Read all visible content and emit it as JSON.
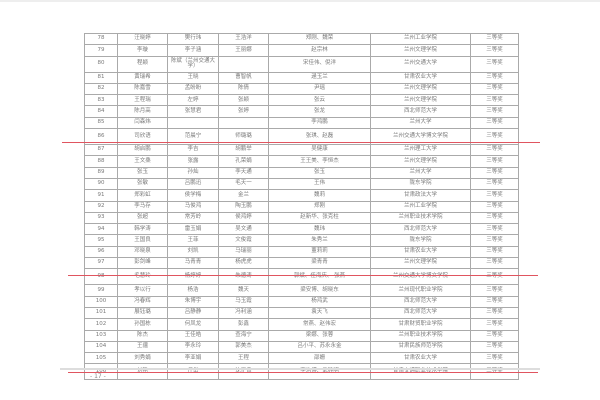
{
  "rows": [
    [
      "78",
      "汪晓婷",
      "樊行玮",
      "王浩洋",
      "郑刚、魏荣",
      "兰州工业学院",
      "三等奖"
    ],
    [
      "79",
      "李璇",
      "李子涵",
      "王丽娜",
      "赵宗林",
      "兰州文理学院",
      "三等奖"
    ],
    [
      "80",
      "程颖",
      "陈斌（兰州交通大学）",
      "",
      "宋佳伟、倪洋",
      "兰州交通大学",
      "三等奖"
    ],
    [
      "81",
      "黄瑞希",
      "王晓",
      "曹智帆",
      "逯玉兰",
      "甘肃农业大学",
      "三等奖"
    ],
    [
      "82",
      "陈嘉雪",
      "孟盼盼",
      "陈倩",
      "尹瑶",
      "兰州文理学院",
      "三等奖"
    ],
    [
      "83",
      "王程瑞",
      "左婷",
      "张颖",
      "张云",
      "兰州文理学院",
      "三等奖"
    ],
    [
      "84",
      "陈月高",
      "张慧君",
      "张婷",
      "张龙",
      "西北师范大学",
      "三等奖"
    ],
    [
      "85",
      "闫森炜",
      "",
      "",
      "李鸿鹏",
      "兰州大学",
      "三等奖"
    ],
    [
      "86",
      "司欣语",
      "范晨宁",
      "师璐璐",
      "张琪、赵磊",
      "兰州交通大学博文学院",
      "三等奖"
    ],
    [
      "87",
      "胡启鹏",
      "李吉",
      "胡鹏举",
      "吴健康",
      "兰州理工大学",
      "三等奖"
    ],
    [
      "88",
      "王文桑",
      "张露",
      "孔荣娟",
      "王王美、李恒杰",
      "兰州文理学院",
      "三等奖"
    ],
    [
      "89",
      "张玉",
      "孙灿",
      "李天通",
      "张玉",
      "兰州大学",
      "三等奖"
    ],
    [
      "90",
      "张敏",
      "吕鹏迅",
      "毛天一",
      "王伟",
      "陇东学院",
      "三等奖"
    ],
    [
      "91",
      "郑彩虹",
      "侯学梅",
      "金兰",
      "魏莉",
      "甘肃政法大学",
      "三等奖"
    ],
    [
      "92",
      "李马存",
      "马俊鸿",
      "陶玉鹏",
      "郑刚",
      "兰州工业学院",
      "三等奖"
    ],
    [
      "93",
      "张超",
      "常芳岭",
      "侯鸿婷",
      "赵新华、张克柱",
      "兰州职业技术学院",
      "三等奖"
    ],
    [
      "94",
      "韩学涛",
      "雷玉娟",
      "吴文通",
      "魏玮",
      "西北师范大学",
      "三等奖"
    ],
    [
      "95",
      "王国良",
      "王菲",
      "文俊霞",
      "朱秀兰",
      "陇东学院",
      "三等奖"
    ],
    [
      "96",
      "邓晓泉",
      "刘凯",
      "马瑞丽",
      "董莉莉",
      "甘肃农业大学",
      "三等奖"
    ],
    [
      "97",
      "彭剑峰",
      "马青青",
      "杨虎虎",
      "梁青青",
      "兰州文理学院",
      "三等奖"
    ],
    [
      "98",
      "毛慧玲",
      "杨婷婷",
      "朱德涛",
      "郭斌、任海庆、 张燕",
      "兰州交通大学博文学院",
      "三等奖"
    ],
    [
      "99",
      "孝以行",
      "杨浩",
      "魏天",
      "梁安博、胡晓东",
      "兰州现代职业学院",
      "三等奖"
    ],
    [
      "100",
      "冯春辉",
      "朱博宇",
      "马玉霞",
      "杨鸿武",
      "西北师范大学",
      "三等奖"
    ],
    [
      "101",
      "展钰璐",
      "吕静静",
      "冯利涵",
      "袁天飞",
      "西北师范大学",
      "三等奖"
    ],
    [
      "102",
      "孙国栋",
      "何凤龙",
      "彭鑫",
      "常燕、赵伟宏",
      "甘肃财贸职业学院",
      "三等奖"
    ],
    [
      "103",
      "陈杰",
      "王佳皓",
      "查海宁",
      "梁娜、张蓉",
      "兰州职业技术学院",
      "三等奖"
    ],
    [
      "104",
      "王疆",
      "李永玲",
      "郭美杰",
      "吕小平、苏永永金",
      "甘肃民族师范学院",
      "三等奖"
    ],
    [
      "105",
      "刘秀娟",
      "李亚娟",
      "王程",
      "邵姗",
      "甘肃农业大学",
      "三等奖"
    ],
    [
      "106",
      "刘艳",
      "任岱",
      "沈正良",
      "李治博、武铮明",
      "甘肃交通职业技术学院",
      "三等奖"
    ]
  ],
  "page_number": "- 17 -",
  "colors": {
    "annotation_line": "#e05560",
    "grid": "#aaaaaa"
  }
}
